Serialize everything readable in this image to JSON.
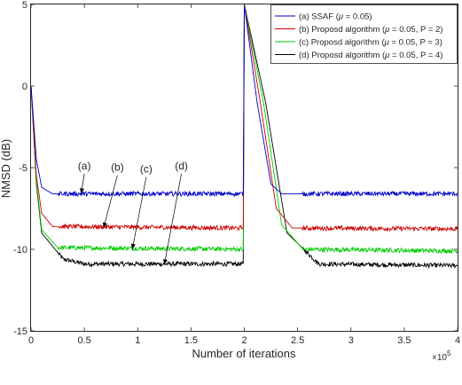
{
  "chart_data": {
    "type": "line",
    "xlabel": "Number of iterations",
    "ylabel": "NMSD (dB)",
    "x_multiplier": "×10",
    "x_multiplier_exp": "5",
    "xlim": [
      0,
      4
    ],
    "ylim": [
      -15,
      5
    ],
    "x_ticks": [
      0,
      0.5,
      1,
      1.5,
      2,
      2.5,
      3,
      3.5,
      4
    ],
    "x_tick_labels": [
      "0",
      "0.5",
      "1",
      "1.5",
      "2",
      "2.5",
      "3",
      "3.5",
      "4"
    ],
    "y_ticks": [
      -15,
      -10,
      -5,
      0,
      5
    ],
    "y_tick_labels": [
      "-15",
      "-10",
      "-5",
      "0",
      "5"
    ],
    "grid": false,
    "legend_position": "top-right",
    "legend": [
      {
        "pre": "(a) SSAF (",
        "mu": "μ",
        "post": " = 0.05)"
      },
      {
        "pre": "(b) Proposd algorithm (",
        "mu": "μ",
        "post": " = 0.05, P = 2)"
      },
      {
        "pre": "(c) Proposd algorithm (",
        "mu": "μ",
        "post": " = 0.05, P = 3)"
      },
      {
        "pre": "(d) Proposd algorithm (",
        "mu": "μ",
        "post": " = 0.05, P = 4)"
      }
    ],
    "series": [
      {
        "color": "#0000cc",
        "key_points": [
          [
            0,
            0
          ],
          [
            0.05,
            -4.5
          ],
          [
            0.1,
            -6.2
          ],
          [
            0.2,
            -6.6
          ],
          [
            1.99,
            -6.6
          ],
          [
            2.0,
            5
          ],
          [
            2.12,
            -1.0
          ],
          [
            2.25,
            -6.0
          ],
          [
            2.35,
            -6.6
          ],
          [
            4,
            -6.6
          ]
        ],
        "steady_value": -6.6
      },
      {
        "color": "#cc0000",
        "key_points": [
          [
            0,
            0
          ],
          [
            0.05,
            -5.5
          ],
          [
            0.1,
            -7.8
          ],
          [
            0.2,
            -8.6
          ],
          [
            1.99,
            -8.7
          ],
          [
            2.0,
            5
          ],
          [
            2.15,
            -1.0
          ],
          [
            2.3,
            -7.5
          ],
          [
            2.45,
            -8.7
          ],
          [
            4,
            -8.75
          ]
        ],
        "steady_value": -8.7
      },
      {
        "color": "#00cc00",
        "key_points": [
          [
            0,
            0
          ],
          [
            0.05,
            -5.8
          ],
          [
            0.1,
            -8.8
          ],
          [
            0.25,
            -9.9
          ],
          [
            1.99,
            -10.0
          ],
          [
            2.0,
            5
          ],
          [
            2.18,
            -1.0
          ],
          [
            2.35,
            -8.5
          ],
          [
            2.55,
            -10.0
          ],
          [
            4,
            -10.1
          ]
        ],
        "steady_value": -10.0
      },
      {
        "color": "#000000",
        "key_points": [
          [
            0,
            0
          ],
          [
            0.05,
            -6.0
          ],
          [
            0.1,
            -9.0
          ],
          [
            0.3,
            -10.6
          ],
          [
            0.5,
            -10.9
          ],
          [
            1.99,
            -10.9
          ],
          [
            2.0,
            5
          ],
          [
            2.2,
            -1.0
          ],
          [
            2.4,
            -9.0
          ],
          [
            2.7,
            -10.9
          ],
          [
            4,
            -11.0
          ]
        ],
        "steady_value": -10.9
      }
    ],
    "annotations": [
      {
        "label": "(a)",
        "text_x": 0.5,
        "text_y": -5.1,
        "arrow_to_x": 0.47,
        "arrow_to_y": -6.6
      },
      {
        "label": "(b)",
        "text_x": 0.81,
        "text_y": -5.2,
        "arrow_to_x": 0.68,
        "arrow_to_y": -8.7
      },
      {
        "label": "(c)",
        "text_x": 1.08,
        "text_y": -5.3,
        "arrow_to_x": 0.95,
        "arrow_to_y": -10.0
      },
      {
        "label": "(d)",
        "text_x": 1.41,
        "text_y": -5.1,
        "arrow_to_x": 1.25,
        "arrow_to_y": -10.95
      }
    ]
  }
}
